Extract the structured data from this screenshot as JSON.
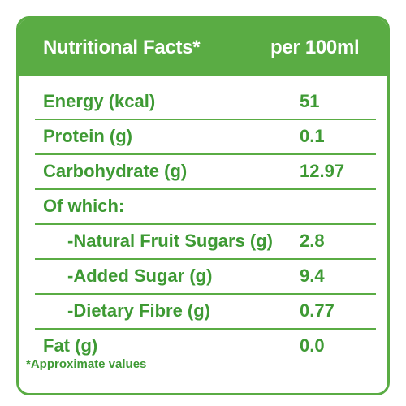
{
  "header": {
    "title": "Nutritional Facts*",
    "unit": "per 100ml"
  },
  "rows": [
    {
      "label": "Energy (kcal)",
      "value": "51"
    },
    {
      "label": "Protein (g)",
      "value": "0.1"
    },
    {
      "label": "Carbohydrate (g)",
      "value": "12.97"
    },
    {
      "label": "Of which:",
      "value": ""
    },
    {
      "label": "-Natural Fruit Sugars (g)",
      "value": "2.8"
    },
    {
      "label": "-Added Sugar (g)",
      "value": "9.4"
    },
    {
      "label": "-Dietary Fibre (g)",
      "value": "0.77"
    },
    {
      "label": "Fat (g)",
      "value": "0.0"
    }
  ],
  "footnote": "*Approximate values",
  "colors": {
    "accent": "#5aac44",
    "text": "#3e9a34",
    "header_text": "#ffffff"
  }
}
